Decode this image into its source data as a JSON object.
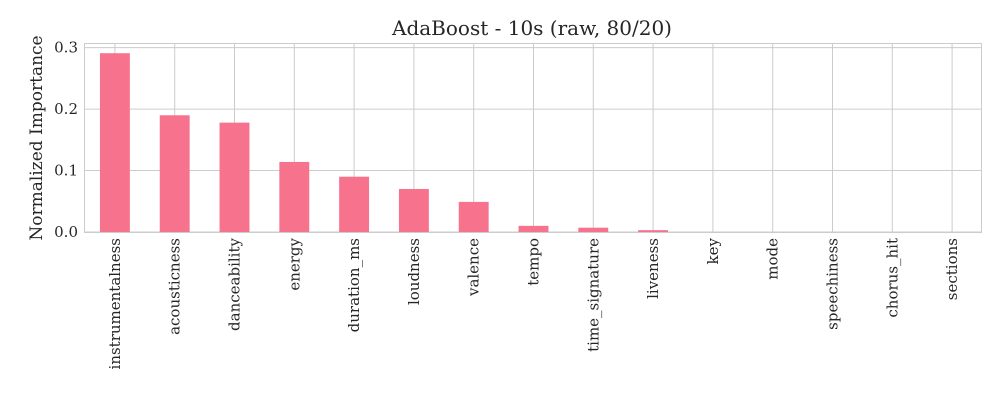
{
  "chart_data": {
    "type": "bar",
    "title": "AdaBoost - 10s (raw, 80/20)",
    "xlabel": "",
    "ylabel": "Normalized Importance",
    "categories": [
      "instrumentalness",
      "acousticness",
      "danceability",
      "energy",
      "duration_ms",
      "loudness",
      "valence",
      "tempo",
      "time_signature",
      "liveness",
      "key",
      "mode",
      "speechiness",
      "chorus_hit",
      "sections"
    ],
    "values": [
      0.291,
      0.19,
      0.178,
      0.114,
      0.09,
      0.07,
      0.049,
      0.01,
      0.007,
      0.003,
      0,
      0,
      0,
      0,
      0
    ],
    "yticks": [
      "0.0",
      "0.1",
      "0.2",
      "0.3"
    ],
    "ylim": [
      0,
      0.306
    ],
    "grid": true,
    "bar_color": "#f7728c",
    "grid_color": "#cccccc",
    "text_color": "#262626"
  }
}
